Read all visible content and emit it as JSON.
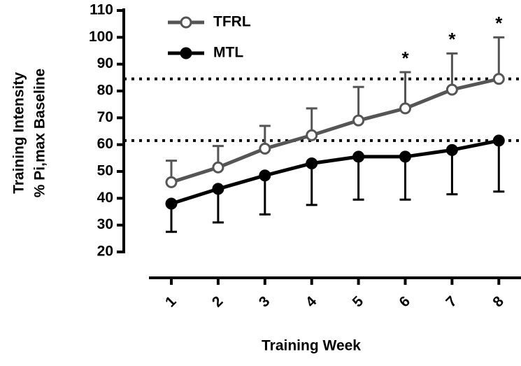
{
  "chart_data": {
    "type": "line",
    "xlabel": "Training Week",
    "ylabel": [
      "Training Intensity",
      "% Pi,max Baseline"
    ],
    "categories": [
      "1",
      "2",
      "3",
      "4",
      "5",
      "6",
      "7",
      "8"
    ],
    "series": [
      {
        "name": "TFRL",
        "color": "#555555",
        "marker": "open",
        "error_direction": "up",
        "values": [
          46,
          51.5,
          58.5,
          63.5,
          69,
          73.5,
          80.5,
          84.5
        ],
        "errors": [
          8,
          8,
          8.5,
          10,
          12.5,
          13.5,
          13.5,
          15.5
        ]
      },
      {
        "name": "MTL",
        "color": "#000000",
        "marker": "filled",
        "error_direction": "down",
        "values": [
          38,
          43.5,
          48.5,
          53,
          55.5,
          55.5,
          58,
          61.5
        ],
        "errors": [
          10.5,
          12.5,
          14.5,
          15.5,
          16,
          16,
          16.5,
          19
        ]
      }
    ],
    "reference_lines": [
      84.5,
      61.5
    ],
    "annotations": [
      {
        "text": "*",
        "week": "6"
      },
      {
        "text": "*",
        "week": "7"
      },
      {
        "text": "*",
        "week": "8"
      }
    ],
    "ylim": [
      20,
      110
    ],
    "yticks": [
      20,
      30,
      40,
      50,
      60,
      70,
      80,
      90,
      100,
      110
    ]
  }
}
